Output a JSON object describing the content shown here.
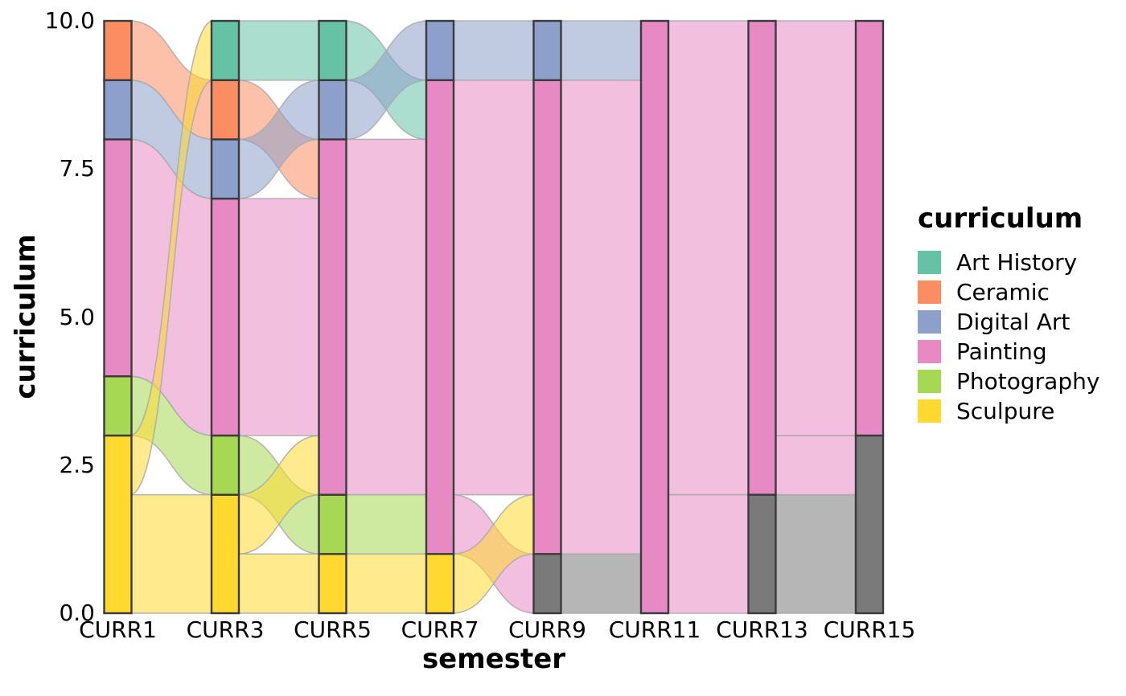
{
  "chart_data": {
    "type": "alluvial",
    "xlabel": "semester",
    "ylabel": "curriculum",
    "x_categories": [
      "CURR1",
      "CURR3",
      "CURR5",
      "CURR7",
      "CURR9",
      "CURR11",
      "CURR13",
      "CURR15"
    ],
    "y_ticks": [
      {
        "value": 0,
        "label": "0.0"
      },
      {
        "value": 2.5,
        "label": "2.5"
      },
      {
        "value": 5,
        "label": "5.0"
      },
      {
        "value": 7.5,
        "label": "7.5"
      },
      {
        "value": 10,
        "label": "10.0"
      }
    ],
    "ylim": [
      0,
      10
    ],
    "grid": false,
    "legend": {
      "title": "curriculum",
      "position": "right",
      "entries": [
        {
          "label": "Art History",
          "color": "#66C2A5"
        },
        {
          "label": "Ceramic",
          "color": "#FC8D62"
        },
        {
          "label": "Digital Art",
          "color": "#8DA0CB"
        },
        {
          "label": "Painting",
          "color": "#E78AC3"
        },
        {
          "label": "Photography",
          "color": "#A6D854"
        },
        {
          "label": "Sculpure",
          "color": "#FFD92F"
        }
      ]
    },
    "colors": {
      "Art History": "#66C2A5",
      "Ceramic": "#FC8D62",
      "Digital Art": "#8DA0CB",
      "Painting": "#E78AC3",
      "Photography": "#A6D854",
      "Sculpure": "#FFD92F",
      "NA": "#7A7A7A"
    },
    "style": {
      "flow_alpha": 0.55,
      "flow_stroke": "#ABABAB",
      "stratum_stroke": "#3B3B3B"
    },
    "strata": [
      {
        "semester": "CURR1",
        "segments": [
          {
            "curriculum": "Sculpure",
            "from": 0,
            "to": 3
          },
          {
            "curriculum": "Photography",
            "from": 3,
            "to": 4
          },
          {
            "curriculum": "Painting",
            "from": 4,
            "to": 8
          },
          {
            "curriculum": "Digital Art",
            "from": 8,
            "to": 9
          },
          {
            "curriculum": "Ceramic",
            "from": 9,
            "to": 10
          }
        ]
      },
      {
        "semester": "CURR3",
        "segments": [
          {
            "curriculum": "Sculpure",
            "from": 0,
            "to": 2
          },
          {
            "curriculum": "Photography",
            "from": 2,
            "to": 3
          },
          {
            "curriculum": "Painting",
            "from": 3,
            "to": 7
          },
          {
            "curriculum": "Digital Art",
            "from": 7,
            "to": 8
          },
          {
            "curriculum": "Ceramic",
            "from": 8,
            "to": 9
          },
          {
            "curriculum": "Art History",
            "from": 9,
            "to": 10
          }
        ]
      },
      {
        "semester": "CURR5",
        "segments": [
          {
            "curriculum": "Sculpure",
            "from": 0,
            "to": 1
          },
          {
            "curriculum": "Photography",
            "from": 1,
            "to": 2
          },
          {
            "curriculum": "Painting",
            "from": 2,
            "to": 8
          },
          {
            "curriculum": "Digital Art",
            "from": 8,
            "to": 9
          },
          {
            "curriculum": "Art History",
            "from": 9,
            "to": 10
          }
        ]
      },
      {
        "semester": "CURR7",
        "segments": [
          {
            "curriculum": "Sculpure",
            "from": 0,
            "to": 1
          },
          {
            "curriculum": "Painting",
            "from": 1,
            "to": 9
          },
          {
            "curriculum": "Digital Art",
            "from": 9,
            "to": 10
          }
        ]
      },
      {
        "semester": "CURR9",
        "segments": [
          {
            "curriculum": "NA",
            "from": 0,
            "to": 1
          },
          {
            "curriculum": "Painting",
            "from": 1,
            "to": 9
          },
          {
            "curriculum": "Digital Art",
            "from": 9,
            "to": 10
          }
        ]
      },
      {
        "semester": "CURR11",
        "segments": [
          {
            "curriculum": "Painting",
            "from": 0,
            "to": 10
          }
        ]
      },
      {
        "semester": "CURR13",
        "segments": [
          {
            "curriculum": "NA",
            "from": 0,
            "to": 2
          },
          {
            "curriculum": "Painting",
            "from": 2,
            "to": 10
          }
        ]
      },
      {
        "semester": "CURR15",
        "segments": [
          {
            "curriculum": "NA",
            "from": 0,
            "to": 3
          },
          {
            "curriculum": "Painting",
            "from": 3,
            "to": 10
          }
        ]
      }
    ],
    "flows": [
      {
        "from_axis": 0,
        "to_axis": 1,
        "curriculum": "Painting",
        "to_curriculum": "Painting",
        "from": [
          4,
          8
        ],
        "to": [
          3,
          7
        ]
      },
      {
        "from_axis": 0,
        "to_axis": 1,
        "curriculum": "Digital Art",
        "to_curriculum": "Digital Art",
        "from": [
          8,
          9
        ],
        "to": [
          7,
          8
        ]
      },
      {
        "from_axis": 0,
        "to_axis": 1,
        "curriculum": "Ceramic",
        "to_curriculum": "Ceramic",
        "from": [
          9,
          10
        ],
        "to": [
          8,
          9
        ]
      },
      {
        "from_axis": 0,
        "to_axis": 1,
        "curriculum": "Photography",
        "to_curriculum": "Photography",
        "from": [
          3,
          4
        ],
        "to": [
          2,
          3
        ]
      },
      {
        "from_axis": 0,
        "to_axis": 1,
        "curriculum": "Sculpure",
        "to_curriculum": "Sculpure",
        "from": [
          0,
          2
        ],
        "to": [
          0,
          2
        ]
      },
      {
        "from_axis": 0,
        "to_axis": 1,
        "curriculum": "Sculpure",
        "to_curriculum": "Art History",
        "from": [
          2,
          3
        ],
        "to": [
          9,
          10
        ]
      },
      {
        "from_axis": 1,
        "to_axis": 2,
        "curriculum": "Art History",
        "to_curriculum": "Art History",
        "from": [
          9,
          10
        ],
        "to": [
          9,
          10
        ]
      },
      {
        "from_axis": 1,
        "to_axis": 2,
        "curriculum": "Ceramic",
        "to_curriculum": "Painting",
        "from": [
          8,
          9
        ],
        "to": [
          7,
          8
        ]
      },
      {
        "from_axis": 1,
        "to_axis": 2,
        "curriculum": "Digital Art",
        "to_curriculum": "Digital Art",
        "from": [
          7,
          8
        ],
        "to": [
          8,
          9
        ]
      },
      {
        "from_axis": 1,
        "to_axis": 2,
        "curriculum": "Painting",
        "to_curriculum": "Painting",
        "from": [
          3,
          7
        ],
        "to": [
          3,
          7
        ]
      },
      {
        "from_axis": 1,
        "to_axis": 2,
        "curriculum": "Photography",
        "to_curriculum": "Photography",
        "from": [
          2,
          3
        ],
        "to": [
          1,
          2
        ]
      },
      {
        "from_axis": 1,
        "to_axis": 2,
        "curriculum": "Sculpure",
        "to_curriculum": "Sculpure",
        "from": [
          0,
          1
        ],
        "to": [
          0,
          1
        ]
      },
      {
        "from_axis": 1,
        "to_axis": 2,
        "curriculum": "Sculpure",
        "to_curriculum": "Painting",
        "from": [
          1,
          2
        ],
        "to": [
          2,
          3
        ]
      },
      {
        "from_axis": 2,
        "to_axis": 3,
        "curriculum": "Art History",
        "to_curriculum": "Painting",
        "from": [
          9,
          10
        ],
        "to": [
          8,
          9
        ]
      },
      {
        "from_axis": 2,
        "to_axis": 3,
        "curriculum": "Digital Art",
        "to_curriculum": "Digital Art",
        "from": [
          8,
          9
        ],
        "to": [
          9,
          10
        ]
      },
      {
        "from_axis": 2,
        "to_axis": 3,
        "curriculum": "Painting",
        "to_curriculum": "Painting",
        "from": [
          2,
          8
        ],
        "to": [
          2,
          8
        ]
      },
      {
        "from_axis": 2,
        "to_axis": 3,
        "curriculum": "Photography",
        "to_curriculum": "Painting",
        "from": [
          1,
          2
        ],
        "to": [
          1,
          2
        ]
      },
      {
        "from_axis": 2,
        "to_axis": 3,
        "curriculum": "Sculpure",
        "to_curriculum": "Sculpure",
        "from": [
          0,
          1
        ],
        "to": [
          0,
          1
        ]
      },
      {
        "from_axis": 3,
        "to_axis": 4,
        "curriculum": "Digital Art",
        "to_curriculum": "Digital Art",
        "from": [
          9,
          10
        ],
        "to": [
          9,
          10
        ]
      },
      {
        "from_axis": 3,
        "to_axis": 4,
        "curriculum": "Painting",
        "to_curriculum": "Painting",
        "from": [
          2,
          9
        ],
        "to": [
          2,
          9
        ]
      },
      {
        "from_axis": 3,
        "to_axis": 4,
        "curriculum": "Painting",
        "to_curriculum": "NA",
        "from": [
          1,
          2
        ],
        "to": [
          0,
          1
        ]
      },
      {
        "from_axis": 3,
        "to_axis": 4,
        "curriculum": "Sculpure",
        "to_curriculum": "Painting",
        "from": [
          0,
          1
        ],
        "to": [
          1,
          2
        ]
      },
      {
        "from_axis": 4,
        "to_axis": 5,
        "curriculum": "Digital Art",
        "to_curriculum": "Painting",
        "from": [
          9,
          10
        ],
        "to": [
          9,
          10
        ]
      },
      {
        "from_axis": 4,
        "to_axis": 5,
        "curriculum": "Painting",
        "to_curriculum": "Painting",
        "from": [
          1,
          9
        ],
        "to": [
          1,
          9
        ]
      },
      {
        "from_axis": 4,
        "to_axis": 5,
        "curriculum": "NA",
        "to_curriculum": "Painting",
        "from": [
          0,
          1
        ],
        "to": [
          0,
          1
        ]
      },
      {
        "from_axis": 5,
        "to_axis": 6,
        "curriculum": "Painting",
        "to_curriculum": "Painting",
        "from": [
          2,
          10
        ],
        "to": [
          2,
          10
        ]
      },
      {
        "from_axis": 5,
        "to_axis": 6,
        "curriculum": "Painting",
        "to_curriculum": "NA",
        "from": [
          0,
          2
        ],
        "to": [
          0,
          2
        ]
      },
      {
        "from_axis": 6,
        "to_axis": 7,
        "curriculum": "Painting",
        "to_curriculum": "Painting",
        "from": [
          3,
          10
        ],
        "to": [
          3,
          10
        ]
      },
      {
        "from_axis": 6,
        "to_axis": 7,
        "curriculum": "Painting",
        "to_curriculum": "NA",
        "from": [
          2,
          3
        ],
        "to": [
          2,
          3
        ]
      },
      {
        "from_axis": 6,
        "to_axis": 7,
        "curriculum": "NA",
        "to_curriculum": "NA",
        "from": [
          0,
          2
        ],
        "to": [
          0,
          2
        ]
      }
    ]
  }
}
